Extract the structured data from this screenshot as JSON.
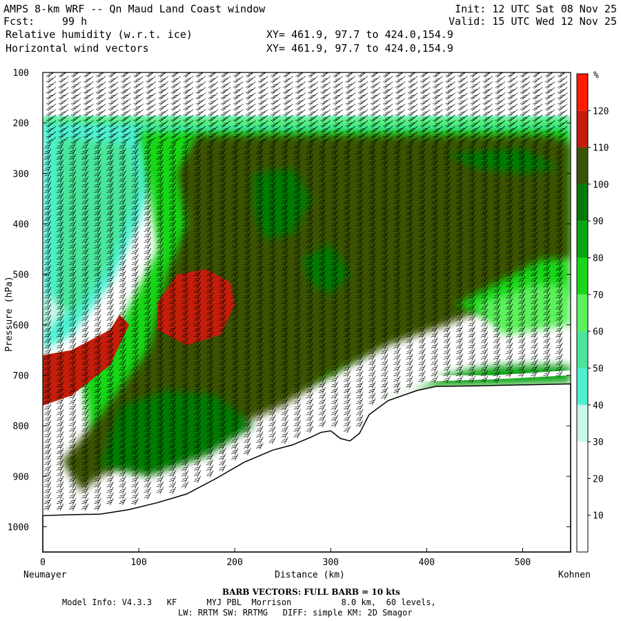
{
  "header": {
    "title": "AMPS 8-km WRF -- Qn Maud Land Coast window",
    "fcst_label": "Fcst:",
    "fcst_value": "99 h",
    "init": "Init: 12 UTC Sat 08 Nov 25",
    "valid": "Valid: 15 UTC Wed 12 Nov 25",
    "field1": "Relative humidity (w.r.t. ice)",
    "field2": "Horizontal wind vectors",
    "xy1": "XY= 461.9, 97.7 to 424.0,154.9",
    "xy2": "XY= 461.9, 97.7 to 424.0,154.9"
  },
  "footer": {
    "barb_note": "BARB VECTORS:  FULL BARB = 10 kts",
    "model_info": "Model Info: V4.3.3   KF      MYJ PBL  Morrison          8.0 km,  60 levels,",
    "physics": "LW: RRTM SW: RRTMG   DIFF: simple KM: 2D Smagor"
  },
  "colors": {
    "c110_120": "#c41e0a",
    "c120_plus": "#ff1a00",
    "c100_110": "#3b5306",
    "c90_100": "#037a03",
    "c80_90": "#0aa512",
    "c70_80": "#18d618",
    "c60_70": "#5cf05c",
    "c50_60": "#49e69a",
    "c40_50": "#4ef0d2",
    "c30_40": "#c8f8ea",
    "below_30": "#ffffff",
    "terrain": "#ffffff"
  },
  "chart_data": {
    "type": "heatmap",
    "title": "Relative humidity (w.r.t. ice)",
    "xlabel": "Distance (km)",
    "ylabel": "Pressure (hPa)",
    "x_start_label": "Neumayer",
    "x_end_label": "Kohnen",
    "xlim": [
      0,
      550
    ],
    "ylim": [
      1050,
      100
    ],
    "x_ticks": [
      0,
      100,
      200,
      300,
      400,
      500
    ],
    "y_ticks": [
      100,
      200,
      300,
      400,
      500,
      600,
      700,
      800,
      900,
      1000
    ],
    "colorbar": {
      "unit": "%",
      "levels": [
        10,
        20,
        30,
        40,
        50,
        60,
        70,
        80,
        90,
        100,
        110,
        120
      ]
    },
    "terrain_surface_hPa": [
      [
        0,
        978
      ],
      [
        30,
        976
      ],
      [
        60,
        975
      ],
      [
        90,
        966
      ],
      [
        120,
        952
      ],
      [
        150,
        935
      ],
      [
        180,
        905
      ],
      [
        210,
        872
      ],
      [
        240,
        848
      ],
      [
        260,
        838
      ],
      [
        280,
        822
      ],
      [
        290,
        813
      ],
      [
        300,
        810
      ],
      [
        310,
        825
      ],
      [
        320,
        830
      ],
      [
        330,
        815
      ],
      [
        340,
        778
      ],
      [
        360,
        750
      ],
      [
        390,
        730
      ],
      [
        410,
        722
      ],
      [
        450,
        721
      ],
      [
        500,
        719
      ],
      [
        550,
        717
      ]
    ]
  }
}
